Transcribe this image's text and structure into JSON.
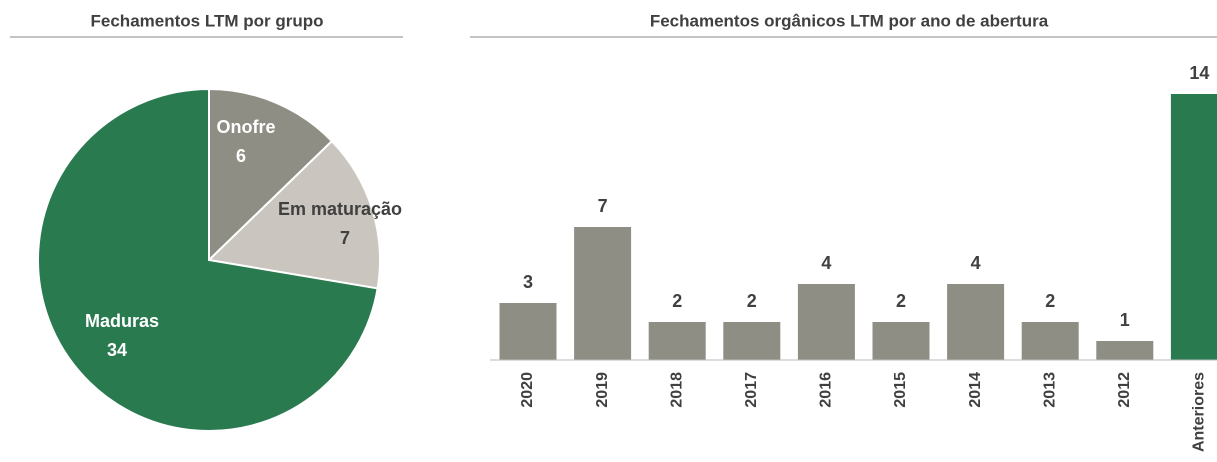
{
  "chart_data": [
    {
      "type": "pie",
      "title": "Fechamentos LTM por grupo",
      "categories": [
        "Onofre",
        "Em maturação",
        "Maduras"
      ],
      "values": [
        6,
        7,
        34
      ],
      "colors": [
        "#8f8e85",
        "#cac6bf",
        "#2a7a50"
      ]
    },
    {
      "type": "bar",
      "title": "Fechamentos orgânicos LTM por ano de abertura",
      "categories": [
        "2020",
        "2019",
        "2018",
        "2017",
        "2016",
        "2015",
        "2014",
        "2013",
        "2012",
        "Anteriores"
      ],
      "values": [
        3,
        7,
        2,
        2,
        4,
        2,
        4,
        2,
        1,
        14
      ],
      "colors": [
        "#8f8e85",
        "#8f8e85",
        "#8f8e85",
        "#8f8e85",
        "#8f8e85",
        "#8f8e85",
        "#8f8e85",
        "#8f8e85",
        "#8f8e85",
        "#2a7a50"
      ],
      "ylim": [
        0,
        14
      ]
    }
  ]
}
